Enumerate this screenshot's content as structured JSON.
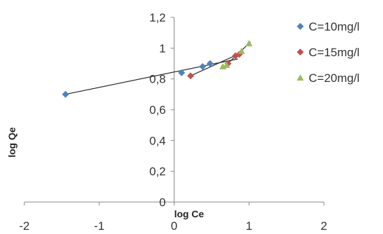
{
  "chart_data": {
    "type": "scatter",
    "title": "",
    "xlabel": "log Ce",
    "ylabel": "log Qe",
    "xlim": [
      -2,
      2
    ],
    "ylim": [
      0,
      1.2
    ],
    "x_ticks": [
      -2,
      -1,
      0,
      1,
      2
    ],
    "x_tick_labels": [
      "-2",
      "-1",
      "0",
      "1",
      "2"
    ],
    "y_ticks": [
      0,
      0.2,
      0.4,
      0.6,
      0.8,
      1,
      1.2
    ],
    "y_tick_labels": [
      "0",
      "0,2",
      "0,4",
      "0,6",
      "0,8",
      "1",
      "1,2"
    ],
    "grid": false,
    "legend_position": "right",
    "series": [
      {
        "name": "C=10mg/l",
        "color": "#4f81bd",
        "marker": "diamond",
        "points": [
          [
            -1.45,
            0.7
          ],
          [
            0.1,
            0.84
          ],
          [
            0.38,
            0.88
          ],
          [
            0.48,
            0.9
          ]
        ],
        "trendline": [
          [
            -1.45,
            0.7
          ],
          [
            0.85,
            0.93
          ]
        ]
      },
      {
        "name": "C=15mg/l",
        "color": "#c0504d",
        "marker": "diamond",
        "points": [
          [
            0.22,
            0.82
          ],
          [
            0.72,
            0.9
          ],
          [
            0.82,
            0.95
          ],
          [
            0.87,
            0.96
          ]
        ],
        "trendline": [
          [
            0.22,
            0.82
          ],
          [
            0.9,
            0.97
          ]
        ]
      },
      {
        "name": "C=20mg/l",
        "color": "#9bbb59",
        "marker": "triangle",
        "points": [
          [
            0.65,
            0.88
          ],
          [
            0.7,
            0.89
          ],
          [
            0.9,
            0.98
          ],
          [
            1.0,
            1.03
          ]
        ],
        "trendline": [
          [
            0.65,
            0.87
          ],
          [
            1.02,
            1.04
          ]
        ]
      }
    ]
  }
}
